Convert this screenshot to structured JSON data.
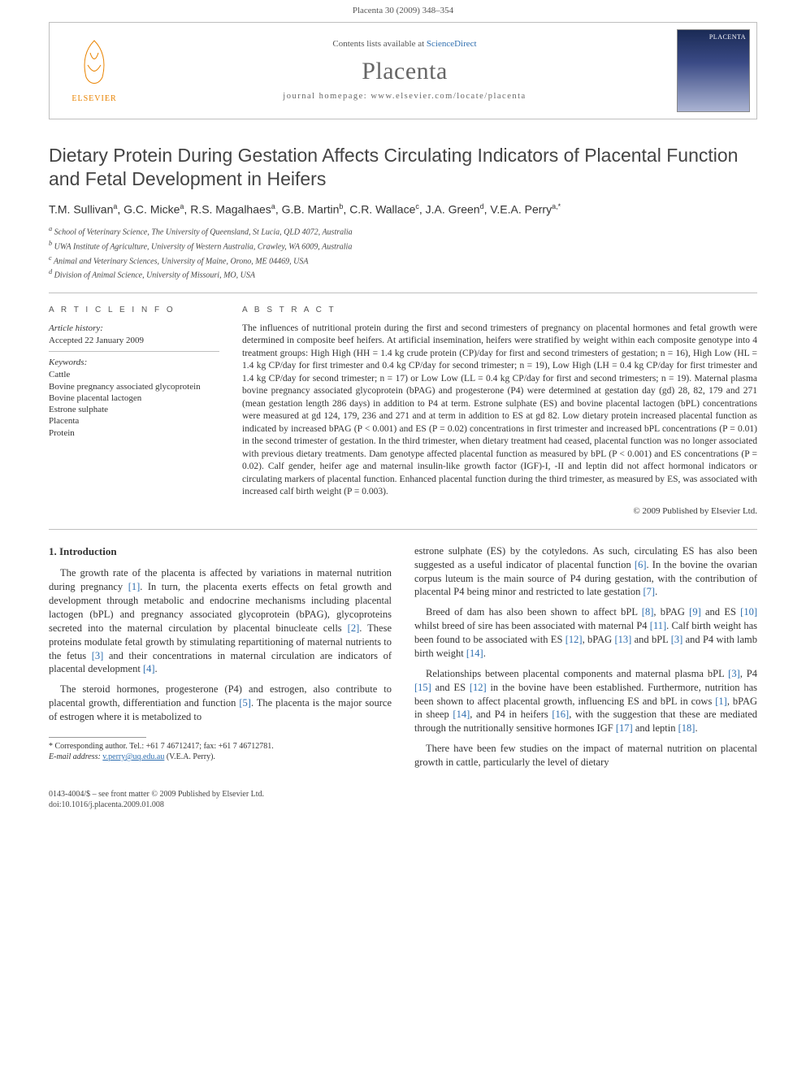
{
  "headerbar": "Placenta 30 (2009) 348–354",
  "header": {
    "publisher": "ELSEVIER",
    "contents_prefix": "Contents lists available at ",
    "contents_link": "ScienceDirect",
    "journal": "Placenta",
    "homepage_label": "journal homepage: www.elsevier.com/locate/placenta",
    "cover_label": "PLACENTA"
  },
  "title": "Dietary Protein During Gestation Affects Circulating Indicators of Placental Function and Fetal Development in Heifers",
  "authors_html": [
    {
      "name": "T.M. Sullivan",
      "sup": "a"
    },
    {
      "name": "G.C. Micke",
      "sup": "a"
    },
    {
      "name": "R.S. Magalhaes",
      "sup": "a"
    },
    {
      "name": "G.B. Martin",
      "sup": "b"
    },
    {
      "name": "C.R. Wallace",
      "sup": "c"
    },
    {
      "name": "J.A. Green",
      "sup": "d"
    },
    {
      "name": "V.E.A. Perry",
      "sup": "a,*"
    }
  ],
  "affiliations": [
    "a School of Veterinary Science, The University of Queensland, St Lucia, QLD 4072, Australia",
    "b UWA Institute of Agriculture, University of Western Australia, Crawley, WA 6009, Australia",
    "c Animal and Veterinary Sciences, University of Maine, Orono, ME 04469, USA",
    "d Division of Animal Science, University of Missouri, MO, USA"
  ],
  "info": {
    "heading": "A R T I C L E   I N F O",
    "history_label": "Article history:",
    "history_value": "Accepted 22 January 2009",
    "keywords_label": "Keywords:",
    "keywords": [
      "Cattle",
      "Bovine pregnancy associated glycoprotein",
      "Bovine placental lactogen",
      "Estrone sulphate",
      "Placenta",
      "Protein"
    ]
  },
  "abstract": {
    "heading": "A B S T R A C T",
    "body": "The influences of nutritional protein during the first and second trimesters of pregnancy on placental hormones and fetal growth were determined in composite beef heifers. At artificial insemination, heifers were stratified by weight within each composite genotype into 4 treatment groups: High High (HH = 1.4 kg crude protein (CP)/day for first and second trimesters of gestation; n = 16), High Low (HL = 1.4 kg CP/day for first trimester and 0.4 kg CP/day for second trimester; n = 19), Low High (LH = 0.4 kg CP/day for first trimester and 1.4 kg CP/day for second trimester; n = 17) or Low Low (LL = 0.4 kg CP/day for first and second trimesters; n = 19). Maternal plasma bovine pregnancy associated glycoprotein (bPAG) and progesterone (P4) were determined at gestation day (gd) 28, 82, 179 and 271 (mean gestation length 286 days) in addition to P4 at term. Estrone sulphate (ES) and bovine placental lactogen (bPL) concentrations were measured at gd 124, 179, 236 and 271 and at term in addition to ES at gd 82. Low dietary protein increased placental function as indicated by increased bPAG (P < 0.001) and ES (P = 0.02) concentrations in first trimester and increased bPL concentrations (P = 0.01) in the second trimester of gestation. In the third trimester, when dietary treatment had ceased, placental function was no longer associated with previous dietary treatments. Dam genotype affected placental function as measured by bPL (P < 0.001) and ES concentrations (P = 0.02). Calf gender, heifer age and maternal insulin-like growth factor (IGF)-I, -II and leptin did not affect hormonal indicators or circulating markers of placental function. Enhanced placental function during the third trimester, as measured by ES, was associated with increased calf birth weight (P = 0.003).",
    "copyright": "© 2009 Published by Elsevier Ltd."
  },
  "intro": {
    "heading": "1.  Introduction",
    "p1": "The growth rate of the placenta is affected by variations in maternal nutrition during pregnancy [1]. In turn, the placenta exerts effects on fetal growth and development through metabolic and endocrine mechanisms including placental lactogen (bPL) and pregnancy associated glycoprotein (bPAG), glycoproteins secreted into the maternal circulation by placental binucleate cells [2]. These proteins modulate fetal growth by stimulating repartitioning of maternal nutrients to the fetus [3] and their concentrations in maternal circulation are indicators of placental development [4].",
    "p2": "The steroid hormones, progesterone (P4) and estrogen, also contribute to placental growth, differentiation and function [5]. The placenta is the major source of estrogen where it is metabolized to",
    "p3": "estrone sulphate (ES) by the cotyledons. As such, circulating ES has also been suggested as a useful indicator of placental function [6]. In the bovine the ovarian corpus luteum is the main source of P4 during gestation, with the contribution of placental P4 being minor and restricted to late gestation [7].",
    "p4": "Breed of dam has also been shown to affect bPL [8], bPAG [9] and ES [10] whilst breed of sire has been associated with maternal P4 [11]. Calf birth weight has been found to be associated with ES [12], bPAG [13] and bPL [3] and P4 with lamb birth weight [14].",
    "p5": "Relationships between placental components and maternal plasma bPL [3], P4 [15] and ES [12] in the bovine have been established. Furthermore, nutrition has been shown to affect placental growth, influencing ES and bPL in cows [1], bPAG in sheep [14], and P4 in heifers [16], with the suggestion that these are mediated through the nutritionally sensitive hormones IGF [17] and leptin [18].",
    "p6": "There have been few studies on the impact of maternal nutrition on placental growth in cattle, particularly the level of dietary"
  },
  "footnotes": {
    "corresponding": "* Corresponding author. Tel.: +61 7 46712417; fax: +61 7 46712781.",
    "email_label": "E-mail address:",
    "email": "v.perry@uq.edu.au",
    "email_author": "(V.E.A. Perry)."
  },
  "footer": {
    "line1": "0143-4004/$ – see front matter © 2009 Published by Elsevier Ltd.",
    "line2": "doi:10.1016/j.placenta.2009.01.008"
  },
  "colors": {
    "link": "#2f6fb0",
    "orange": "#e98300",
    "grey_border": "#bfbfbf"
  }
}
